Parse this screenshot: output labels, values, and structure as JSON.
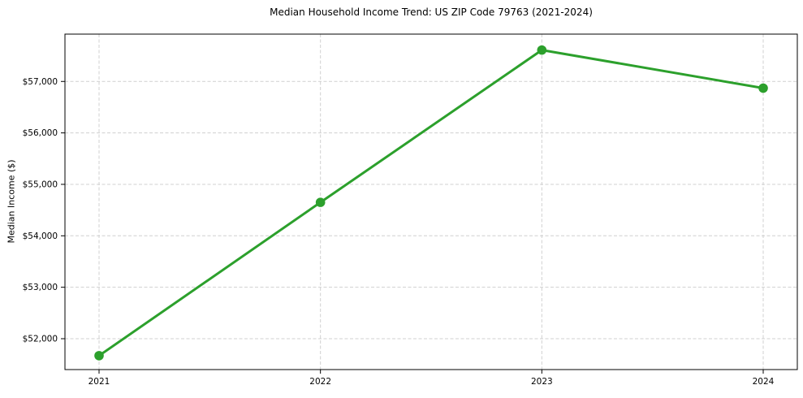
{
  "chart_data": {
    "type": "line",
    "title": "Median Household Income Trend: US ZIP Code 79763 (2021-2024)",
    "ylabel": "Median Income ($)",
    "xlabel": "",
    "categories": [
      "2021",
      "2022",
      "2023",
      "2024"
    ],
    "values": [
      51670,
      54650,
      57610,
      56870
    ],
    "yticks": [
      {
        "value": 52000,
        "label": "$52,000"
      },
      {
        "value": 53000,
        "label": "$53,000"
      },
      {
        "value": 54000,
        "label": "$54,000"
      },
      {
        "value": 55000,
        "label": "$55,000"
      },
      {
        "value": 56000,
        "label": "$56,000"
      },
      {
        "value": 57000,
        "label": "$57,000"
      }
    ],
    "ylim": [
      51400,
      57920
    ],
    "grid": true,
    "grid_style": "dashed",
    "grid_color": "#d0d0d0",
    "line_color": "#2ca02c",
    "marker": "circle",
    "spine_color": "#000000",
    "legend": false,
    "legend_position": "none"
  }
}
